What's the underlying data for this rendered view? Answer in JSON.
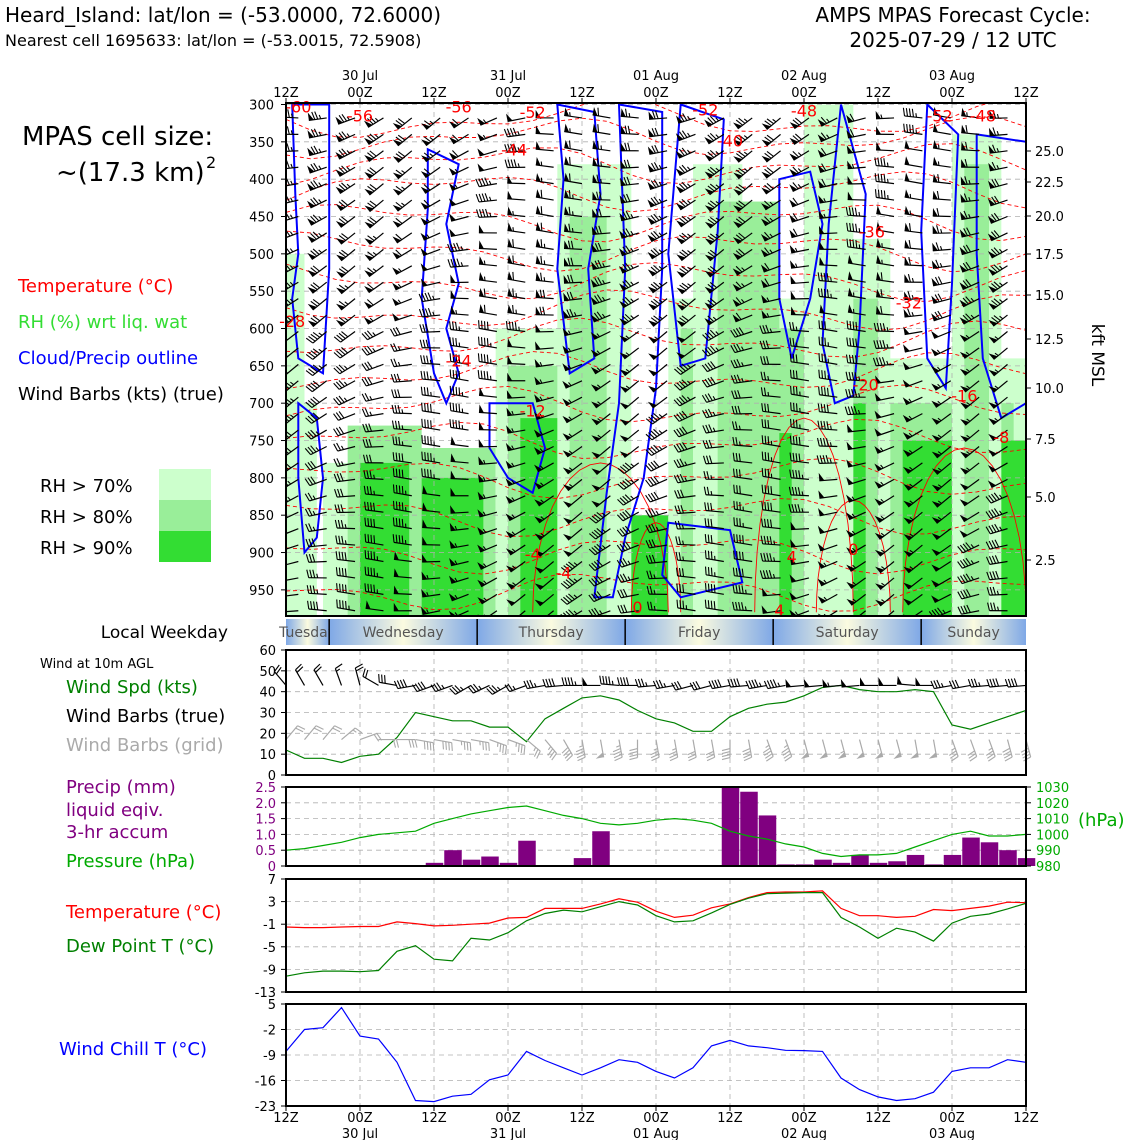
{
  "header": {
    "location_line": "Heard_Island: lat/lon = (-53.0000, 72.6000)",
    "cell_line": "Nearest cell 1695633: lat/lon = (-53.0015, 72.5908)",
    "cycle_title": "AMPS MPAS Forecast Cycle:",
    "cycle_date": "2025-07-29 / 12 UTC"
  },
  "cell_size": {
    "line1": "MPAS cell size:",
    "line2": "~(17.3 km)",
    "exponent": "2"
  },
  "legend_profile": [
    {
      "label": "Temperature (°C)",
      "color": "#ff0000"
    },
    {
      "label": "RH (%) wrt liq. wat",
      "color": "#33dd33"
    },
    {
      "label": "Cloud/Precip outline",
      "color": "#0000ff"
    },
    {
      "label": "Wind Barbs (kts) (true)",
      "color": "#000000"
    }
  ],
  "rh_legend": [
    {
      "label": "RH > 70%",
      "color": "#ccffcc"
    },
    {
      "label": "RH > 80%",
      "color": "#99ee99"
    },
    {
      "label": "RH > 90%",
      "color": "#33dd33"
    }
  ],
  "time_axis": {
    "hour_labels": [
      "12Z",
      "00Z",
      "12Z",
      "00Z",
      "12Z",
      "00Z",
      "12Z",
      "00Z",
      "12Z",
      "00Z",
      "12Z"
    ],
    "date_labels": [
      "30 Jul",
      "31 Jul",
      "01 Aug",
      "02 Aug",
      "03 Aug"
    ]
  },
  "weekday_bar": {
    "label": "Local Weekday",
    "days": [
      "Tuesday",
      "Wednesday",
      "Thursday",
      "Friday",
      "Saturday",
      "Sunday"
    ]
  },
  "chart_data": [
    {
      "type": "heatmap",
      "name": "profile",
      "y_pressure_ticks": [
        "300",
        "350",
        "400",
        "450",
        "500",
        "550",
        "600",
        "650",
        "700",
        "750",
        "800",
        "850",
        "900",
        "950"
      ],
      "right_axis_label": "kft MSL",
      "right_ticks": [
        "25.0",
        "22.5",
        "20.0",
        "17.5",
        "15.0",
        "12.5",
        "10.0",
        "7.5",
        "5.0",
        "2.5"
      ],
      "temperature_labels": [
        {
          "text": "-60",
          "hour": 2,
          "p": 303
        },
        {
          "text": "-56",
          "hour": 12,
          "p": 315
        },
        {
          "text": "-56",
          "hour": 28,
          "p": 303
        },
        {
          "text": "-52",
          "hour": 40,
          "p": 310
        },
        {
          "text": "-44",
          "hour": 37,
          "p": 360
        },
        {
          "text": "-52",
          "hour": 68,
          "p": 307
        },
        {
          "text": "-48",
          "hour": 84,
          "p": 308
        },
        {
          "text": "-40",
          "hour": 72,
          "p": 348
        },
        {
          "text": "-52",
          "hour": 106,
          "p": 315
        },
        {
          "text": "-48",
          "hour": 113,
          "p": 315
        },
        {
          "text": "-36",
          "hour": 95,
          "p": 470
        },
        {
          "text": "-32",
          "hour": 101,
          "p": 565
        },
        {
          "text": "-28",
          "hour": 1,
          "p": 590
        },
        {
          "text": "-24",
          "hour": 28,
          "p": 643
        },
        {
          "text": "-20",
          "hour": 94,
          "p": 675
        },
        {
          "text": "-16",
          "hour": 110,
          "p": 690
        },
        {
          "text": "-8",
          "hour": 116,
          "p": 745
        },
        {
          "text": "-12",
          "hour": 40,
          "p": 710
        },
        {
          "text": "-4",
          "hour": 40,
          "p": 902
        },
        {
          "text": "-4",
          "hour": 45,
          "p": 927
        },
        {
          "text": "0",
          "hour": 57,
          "p": 973
        },
        {
          "text": "0",
          "hour": 92,
          "p": 895
        },
        {
          "text": "4",
          "hour": 82,
          "p": 905
        },
        {
          "text": "4",
          "hour": 80,
          "p": 977
        }
      ]
    },
    {
      "type": "line",
      "name": "wind",
      "title": "Wind at 10m AGL",
      "labels": [
        "Wind Spd (kts)",
        "Wind Barbs (true)",
        "Wind Barbs (grid)"
      ],
      "label_colors": [
        "#008000",
        "#000000",
        "#aaaaaa"
      ],
      "ylim": [
        0,
        60
      ],
      "yticks": [
        "0",
        "10",
        "20",
        "30",
        "40",
        "50",
        "60"
      ],
      "x": [
        0,
        3,
        6,
        9,
        12,
        15,
        18,
        21,
        24,
        27,
        30,
        33,
        36,
        39,
        42,
        45,
        48,
        51,
        54,
        57,
        60,
        63,
        66,
        69,
        72,
        75,
        78,
        81,
        84,
        87,
        90,
        93,
        96,
        99,
        102,
        105,
        108,
        111,
        114,
        117,
        120
      ],
      "wind_speed": [
        12,
        8,
        8,
        6,
        9,
        10,
        18,
        30,
        28,
        26,
        26,
        23,
        23,
        16,
        27,
        32,
        37,
        38,
        36,
        31,
        27,
        25,
        21,
        21,
        28,
        32,
        34,
        35,
        38,
        42,
        43,
        41,
        40,
        40,
        41,
        40,
        24,
        22,
        25,
        28,
        31
      ],
      "barb_dir_true_deg": [
        320,
        330,
        330,
        340,
        345,
        300,
        280,
        260,
        250,
        250,
        240,
        245,
        240,
        250,
        260,
        265,
        270,
        270,
        275,
        270,
        265,
        260,
        255,
        255,
        260,
        265,
        260,
        260,
        265,
        265,
        265,
        265,
        270,
        270,
        275,
        270,
        260,
        260,
        265,
        265,
        265
      ],
      "barb_dir_grid_deg": [
        40,
        40,
        40,
        50,
        70,
        90,
        90,
        100,
        100,
        100,
        100,
        110,
        110,
        130,
        140,
        150,
        170,
        170,
        170,
        180,
        170,
        170,
        170,
        170,
        180,
        170,
        160,
        160,
        165,
        165,
        165,
        165,
        165,
        165,
        170,
        170,
        160,
        160,
        160,
        165,
        165
      ]
    },
    {
      "type": "bar",
      "name": "precip",
      "labels": [
        "Precip (mm)",
        "liquid eqiv.",
        "3-hr accum",
        "Pressure (hPa)"
      ],
      "label_colors": [
        "#800080",
        "#800080",
        "#800080",
        "#00aa00"
      ],
      "ylim": [
        0,
        2.5
      ],
      "yticks": [
        "0",
        "0.5",
        "1.0",
        "1.5",
        "2.0",
        "2.5"
      ],
      "y2ticks": [
        "980",
        "990",
        "1000",
        "1010",
        "1020",
        "1030"
      ],
      "y2label": "(hPa)",
      "y2lim": [
        980,
        1030
      ],
      "x": [
        0,
        3,
        6,
        9,
        12,
        15,
        18,
        21,
        24,
        27,
        30,
        33,
        36,
        39,
        42,
        45,
        48,
        51,
        54,
        57,
        60,
        63,
        66,
        69,
        72,
        75,
        78,
        81,
        84,
        87,
        90,
        93,
        96,
        99,
        102,
        105,
        108,
        111,
        114,
        117,
        120
      ],
      "precip": [
        0,
        0,
        0,
        0,
        0,
        0,
        0,
        0,
        0.1,
        0.5,
        0.2,
        0.3,
        0.1,
        0.8,
        0,
        0,
        0.25,
        1.1,
        0,
        0,
        0,
        0,
        0,
        0,
        2.5,
        2.35,
        1.6,
        0.05,
        0.05,
        0.2,
        0.1,
        0.35,
        0.1,
        0.15,
        0.35,
        0.05,
        0.35,
        0.9,
        0.75,
        0.5,
        0.25
      ],
      "pressure": [
        990,
        991,
        993,
        995,
        998,
        1000,
        1001,
        1002,
        1007,
        1010,
        1013,
        1015,
        1017,
        1018,
        1015,
        1012,
        1010,
        1007,
        1006,
        1007,
        1009,
        1010,
        1009,
        1007,
        1002,
        999,
        997,
        994,
        992,
        988,
        986,
        987,
        987,
        988,
        992,
        996,
        1000,
        1002,
        999,
        999,
        1000
      ]
    },
    {
      "type": "line",
      "name": "temperature",
      "labels": [
        "Temperature (°C)",
        "Dew Point T (°C)"
      ],
      "label_colors": [
        "#ff0000",
        "#008000"
      ],
      "ylim": [
        -13,
        7
      ],
      "yticks": [
        "-13",
        "-9",
        "-5",
        "-1",
        "3",
        "7"
      ],
      "x": [
        0,
        3,
        6,
        9,
        12,
        15,
        18,
        21,
        24,
        27,
        30,
        33,
        36,
        39,
        42,
        45,
        48,
        51,
        54,
        57,
        60,
        63,
        66,
        69,
        72,
        75,
        78,
        81,
        84,
        87,
        90,
        93,
        96,
        99,
        102,
        105,
        108,
        111,
        114,
        117,
        120
      ],
      "temperature": [
        -1.5,
        -1.6,
        -1.6,
        -1.5,
        -1.4,
        -1.4,
        -0.6,
        -0.9,
        -1.3,
        -1.2,
        -1.0,
        -0.8,
        0.1,
        0.2,
        1.8,
        1.8,
        1.8,
        2.6,
        3.5,
        2.9,
        1.3,
        0.2,
        0.6,
        1.9,
        2.6,
        3.7,
        4.6,
        4.7,
        4.7,
        4.9,
        1.8,
        0.5,
        0.5,
        0.2,
        0.4,
        1.6,
        1.4,
        1.8,
        2.2,
        2.9,
        2.8
      ],
      "dewpoint": [
        -10.2,
        -9.6,
        -9.3,
        -9.3,
        -9.4,
        -9.2,
        -5.8,
        -4.8,
        -7.2,
        -7.5,
        -3.5,
        -3.8,
        -2.5,
        -0.4,
        0.9,
        1.5,
        1.2,
        2.1,
        3.0,
        2.4,
        0.5,
        -0.6,
        -0.4,
        1.0,
        2.5,
        3.6,
        4.4,
        4.5,
        4.6,
        4.6,
        0.2,
        -1.5,
        -3.5,
        -1.7,
        -2.4,
        -4.0,
        -0.8,
        0.4,
        0.8,
        1.7,
        2.7
      ]
    },
    {
      "type": "line",
      "name": "windchill",
      "labels": [
        "Wind Chill T (°C)"
      ],
      "label_colors": [
        "#0000ff"
      ],
      "ylim": [
        -23,
        5
      ],
      "yticks": [
        "-23",
        "-16",
        "-9",
        "-2",
        "5"
      ],
      "x": [
        0,
        3,
        6,
        9,
        12,
        15,
        18,
        21,
        24,
        27,
        30,
        33,
        36,
        39,
        42,
        45,
        48,
        51,
        54,
        57,
        60,
        63,
        66,
        69,
        72,
        75,
        78,
        81,
        84,
        87,
        90,
        93,
        96,
        99,
        102,
        105,
        108,
        111,
        114,
        117,
        120
      ],
      "wind_chill": [
        -8,
        -2,
        -1.5,
        4,
        -3.8,
        -4.6,
        -11,
        -21.5,
        -21.8,
        -20.3,
        -19.8,
        -15.8,
        -14.5,
        -8,
        -10.5,
        -12.5,
        -14.5,
        -12.5,
        -10.3,
        -11,
        -13.5,
        -15.3,
        -12.5,
        -6.5,
        -5,
        -6.5,
        -7,
        -7.7,
        -7.8,
        -8,
        -15.3,
        -18.5,
        -20.5,
        -21.5,
        -21,
        -19.2,
        -13.5,
        -12.5,
        -12.5,
        -10.3,
        -11
      ]
    }
  ],
  "colors": {
    "temperature": "#ff0000",
    "dewpoint": "#008000",
    "wind_speed": "#008000",
    "pressure": "#00aa00",
    "precip": "#800080",
    "windchill": "#0000ff",
    "cloud_outline": "#0000ff",
    "grid": "#b0b0b0"
  }
}
